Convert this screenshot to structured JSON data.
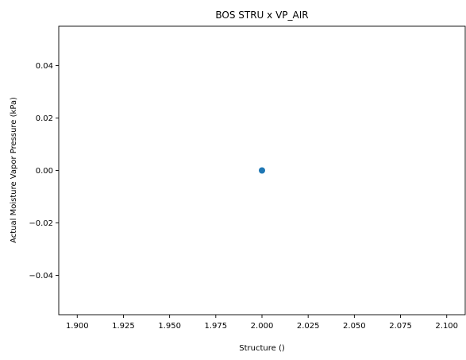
{
  "chart_data": {
    "type": "scatter",
    "title": "BOS STRU x VP_AIR",
    "xlabel": "Structure ()",
    "ylabel": "Actual Moisture Vapor Pressure (kPa)",
    "xlim": [
      1.89,
      2.11
    ],
    "ylim": [
      -0.055,
      0.055
    ],
    "x_ticks": [
      1.9,
      1.925,
      1.95,
      1.975,
      2.0,
      2.025,
      2.05,
      2.075,
      2.1
    ],
    "x_tick_labels": [
      "1.900",
      "1.925",
      "1.950",
      "1.975",
      "2.000",
      "2.025",
      "2.050",
      "2.075",
      "2.100"
    ],
    "y_ticks": [
      -0.04,
      -0.02,
      0.0,
      0.02,
      0.04
    ],
    "y_tick_labels": [
      "−0.04",
      "−0.02",
      "0.00",
      "0.02",
      "0.04"
    ],
    "grid": false,
    "series": [
      {
        "color": "#1f77b4",
        "points": [
          [
            2.0,
            0.0
          ]
        ]
      }
    ]
  }
}
